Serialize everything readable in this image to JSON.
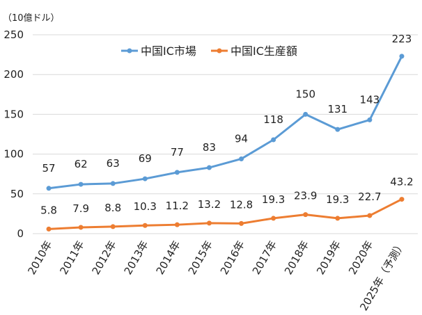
{
  "chart_data": {
    "type": "line",
    "unit_label": "（10億ドル）",
    "categories": [
      "2010年",
      "2011年",
      "2012年",
      "2013年",
      "2014年",
      "2015年",
      "2016年",
      "2017年",
      "2018年",
      "2019年",
      "2020年",
      "2025年（予測）"
    ],
    "y_ticks": [
      "0",
      "50",
      "100",
      "150",
      "200",
      "250"
    ],
    "ylim": [
      0,
      250
    ],
    "grid": true,
    "legend_position": "top-center",
    "series": [
      {
        "name": "中国IC市場",
        "color": "#5b9bd5",
        "values": [
          57,
          62,
          63,
          69,
          77,
          83,
          94,
          118,
          150,
          131,
          143,
          223
        ],
        "labels": [
          "57",
          "62",
          "63",
          "69",
          "77",
          "83",
          "94",
          "118",
          "150",
          "131",
          "143",
          "223"
        ]
      },
      {
        "name": "中国IC生産額",
        "color": "#ed7d31",
        "values": [
          5.8,
          7.9,
          8.8,
          10.3,
          11.2,
          13.2,
          12.8,
          19.3,
          23.9,
          19.3,
          22.7,
          43.2
        ],
        "labels": [
          "5.8",
          "7.9",
          "8.8",
          "10.3",
          "11.2",
          "13.2",
          "12.8",
          "19.3",
          "23.9",
          "19.3",
          "22.7",
          "43.2"
        ]
      }
    ]
  }
}
